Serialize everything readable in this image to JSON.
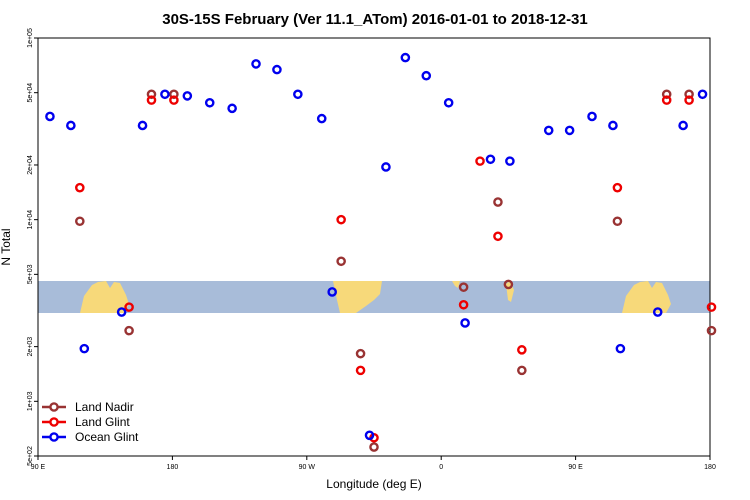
{
  "chart_data": {
    "type": "scatter",
    "title": "30S-15S February (Ver 11.1_ATom)   2016-01-01 to 2018-12-31",
    "xlabel": "Longitude (deg E)",
    "ylabel": "N Total",
    "x_scale": "linear",
    "y_scale": "log",
    "xlim": [
      90,
      540
    ],
    "ylim": [
      500,
      100000
    ],
    "x_ticks": [
      {
        "value": 90,
        "label": "90 E"
      },
      {
        "value": 180,
        "label": "180"
      },
      {
        "value": 270,
        "label": "90 W"
      },
      {
        "value": 360,
        "label": "0"
      },
      {
        "value": 450,
        "label": "90 E"
      },
      {
        "value": 540,
        "label": "180"
      }
    ],
    "y_ticks": [
      {
        "value": 500,
        "label": "5e+02"
      },
      {
        "value": 1000,
        "label": "1e+03"
      },
      {
        "value": 2000,
        "label": "2e+03"
      },
      {
        "value": 5000,
        "label": "5e+03"
      },
      {
        "value": 10000,
        "label": "1e+04"
      },
      {
        "value": 20000,
        "label": "2e+04"
      },
      {
        "value": 50000,
        "label": "5e+04"
      },
      {
        "value": 100000,
        "label": "1e+05"
      }
    ],
    "legend_position": "bottom-left",
    "map_band": {
      "description": "world map strip",
      "ocean_color": "#a8bcd9",
      "land_color": "#f7d97a"
    },
    "series": [
      {
        "name": "Land Nadir",
        "color": "#993333",
        "points": [
          [
            118,
            9800
          ],
          [
            151,
            2450
          ],
          [
            166,
            49000
          ],
          [
            181,
            49000
          ],
          [
            293,
            5900
          ],
          [
            306,
            1830
          ],
          [
            315,
            560
          ],
          [
            375,
            4250
          ],
          [
            398,
            12500
          ],
          [
            405,
            4400
          ],
          [
            414,
            1480
          ],
          [
            478,
            9800
          ],
          [
            511,
            49000
          ],
          [
            526,
            49000
          ],
          [
            541,
            2450
          ]
        ]
      },
      {
        "name": "Land Glint",
        "color": "#ee0000",
        "points": [
          [
            118,
            15000
          ],
          [
            151,
            3300
          ],
          [
            166,
            45500
          ],
          [
            181,
            45500
          ],
          [
            293,
            10000
          ],
          [
            306,
            1480
          ],
          [
            315,
            630
          ],
          [
            375,
            3400
          ],
          [
            386,
            21000
          ],
          [
            398,
            8100
          ],
          [
            414,
            1920
          ],
          [
            478,
            15000
          ],
          [
            511,
            45500
          ],
          [
            526,
            45500
          ],
          [
            541,
            3300
          ]
        ]
      },
      {
        "name": "Ocean Glint",
        "color": "#0000ee",
        "points": [
          [
            98,
            37000
          ],
          [
            112,
            33000
          ],
          [
            121,
            1950
          ],
          [
            146,
            3100
          ],
          [
            160,
            33000
          ],
          [
            175,
            49000
          ],
          [
            190,
            48000
          ],
          [
            205,
            44000
          ],
          [
            220,
            41000
          ],
          [
            236,
            72000
          ],
          [
            250,
            67000
          ],
          [
            264,
            49000
          ],
          [
            280,
            36000
          ],
          [
            287,
            4000
          ],
          [
            312,
            650
          ],
          [
            323,
            19500
          ],
          [
            336,
            78000
          ],
          [
            350,
            62000
          ],
          [
            365,
            44000
          ],
          [
            376,
            2700
          ],
          [
            393,
            21500
          ],
          [
            406,
            21000
          ],
          [
            432,
            31000
          ],
          [
            446,
            31000
          ],
          [
            461,
            37000
          ],
          [
            475,
            33000
          ],
          [
            480,
            1950
          ],
          [
            505,
            3100
          ],
          [
            522,
            33000
          ],
          [
            535,
            49000
          ]
        ]
      }
    ]
  }
}
